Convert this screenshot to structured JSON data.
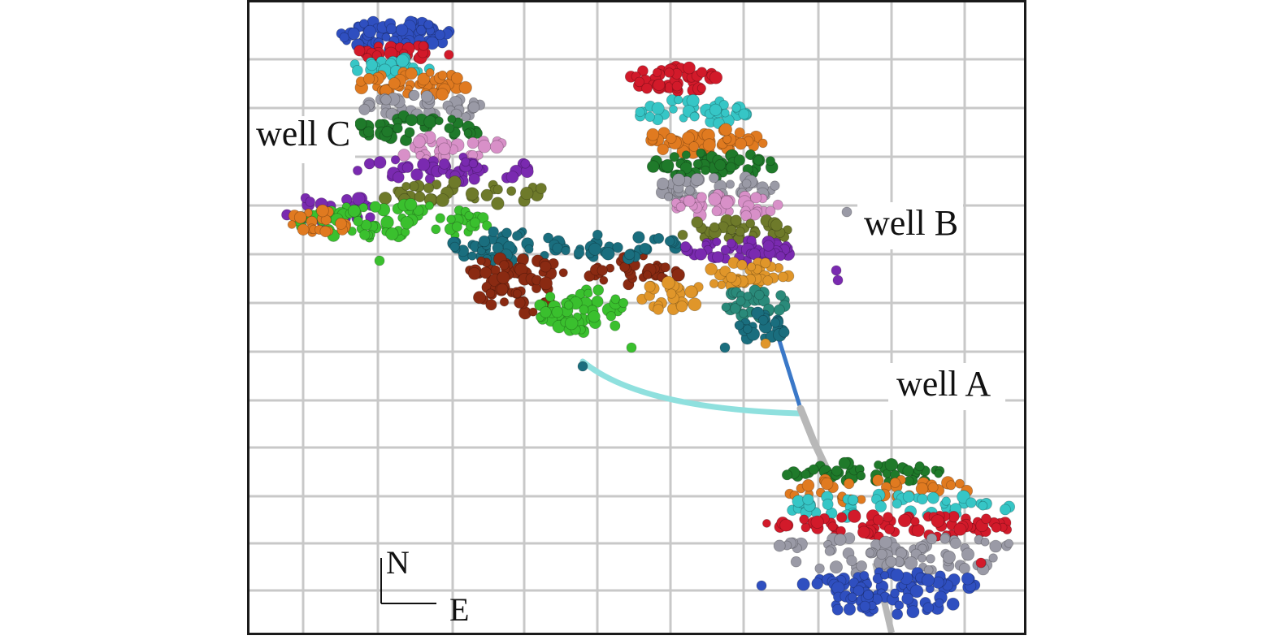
{
  "labels": {
    "well_c": "well C",
    "well_b": "well B",
    "well_a": "well A"
  },
  "compass": {
    "north": "N",
    "east": "E"
  },
  "colors": {
    "background": "#ffffff",
    "grid": "#c8c8c8",
    "frame": "#1a1a1a",
    "well_path_lateral": "#8fe0de",
    "well_path_vertical": "#3a78c8",
    "well_path_surface": "#b8b8b8",
    "event_palette": [
      "#2f4fc0",
      "#d21a2a",
      "#36c6c6",
      "#e07a20",
      "#1f7a2a",
      "#9a9aa6",
      "#d890c8",
      "#7a2ab0",
      "#6e7a2a",
      "#3ac02e",
      "#1a6e7e",
      "#8a2a12",
      "#e0962a",
      "#2a8a7a"
    ]
  }
}
